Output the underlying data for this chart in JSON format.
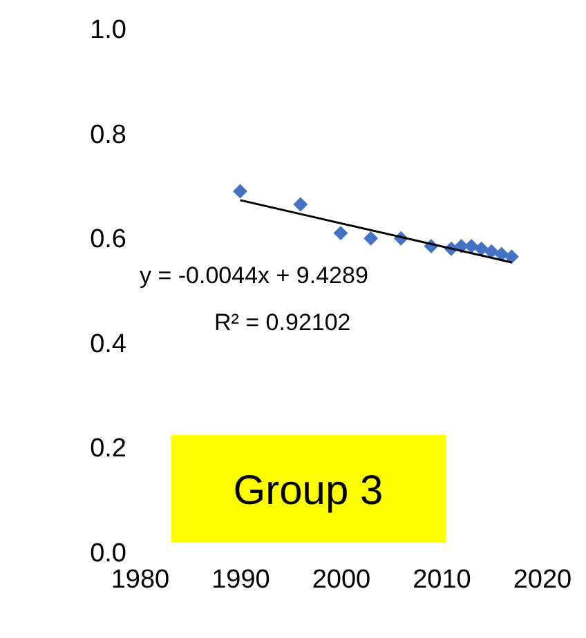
{
  "chart_data": {
    "type": "scatter",
    "x": [
      1990,
      1996,
      2000,
      2003,
      2006,
      2009,
      2011,
      2012,
      2013,
      2014,
      2015,
      2016,
      2017
    ],
    "series": [
      {
        "color": "#4472c4",
        "marker": "diamond",
        "values": [
          0.69,
          0.665,
          0.61,
          0.6,
          0.6,
          0.585,
          0.58,
          0.585,
          0.585,
          0.58,
          0.575,
          0.57,
          0.565
        ]
      },
      {
        "type": "line",
        "color": "#000000",
        "x": [
          1990,
          2017
        ],
        "values": [
          0.673,
          0.554
        ]
      }
    ],
    "xlim": [
      1980,
      2020
    ],
    "xticks": [
      1980,
      1990,
      2000,
      2010,
      2020
    ],
    "ylim": [
      0,
      1
    ],
    "yticks": [
      {
        "value": 0,
        "label": "0.0"
      },
      {
        "value": 0.2,
        "label": "0.2"
      },
      {
        "value": 0.4,
        "label": "0.4"
      },
      {
        "value": 0.6,
        "label": "0.6"
      },
      {
        "value": 0.8,
        "label": "0.8"
      },
      {
        "value": 1,
        "label": "1.0"
      }
    ],
    "grid": false,
    "annotations": [
      "y = -0.0044x + 9.4289",
      "R² = 0.92102",
      "Group 3"
    ]
  }
}
